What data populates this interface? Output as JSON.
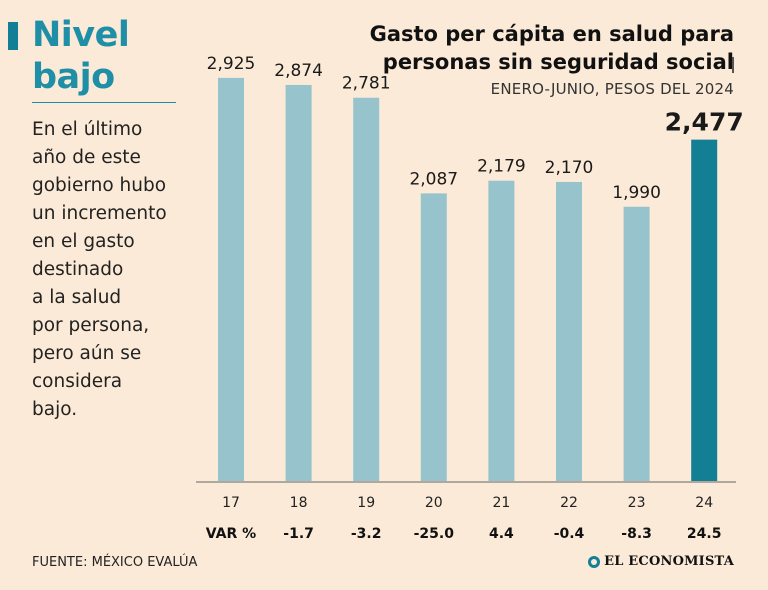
{
  "sidebar": {
    "title_line1": "Nivel",
    "title_line2": "bajo",
    "text": "En el último\naño de este\ngobierno hubo\nun incremento\nen el gasto\ndestinado\na la salud\npor persona,\npero aún se\nconsidera\nbajo."
  },
  "header": {
    "title": "Gasto per cápita en salud para\npersonas sin seguridad social",
    "subtitle": "ENERO-JUNIO, PESOS DEL 2024"
  },
  "chart_data": {
    "type": "bar",
    "categories": [
      "17",
      "18",
      "19",
      "20",
      "21",
      "22",
      "23",
      "24"
    ],
    "values": [
      2925,
      2874,
      2781,
      2087,
      2179,
      2170,
      1990,
      2477
    ],
    "value_labels": [
      "2,925",
      "2,874",
      "2,781",
      "2,087",
      "2,179",
      "2,170",
      "1,990",
      "2,477"
    ],
    "variation_label": "VAR %",
    "variation": [
      "-1.7",
      "-3.2",
      "-25.0",
      "4.4",
      "-0.4",
      "-8.3",
      "24.5"
    ],
    "highlight_index": 7,
    "ylim": [
      0,
      3200
    ],
    "grid": false,
    "colors": {
      "bar": "#97c4cc",
      "highlight": "#127f95"
    }
  },
  "footer": {
    "source": "FUENTE: MÉXICO EVALÚA",
    "brand": "EL ECONOMISTA"
  }
}
